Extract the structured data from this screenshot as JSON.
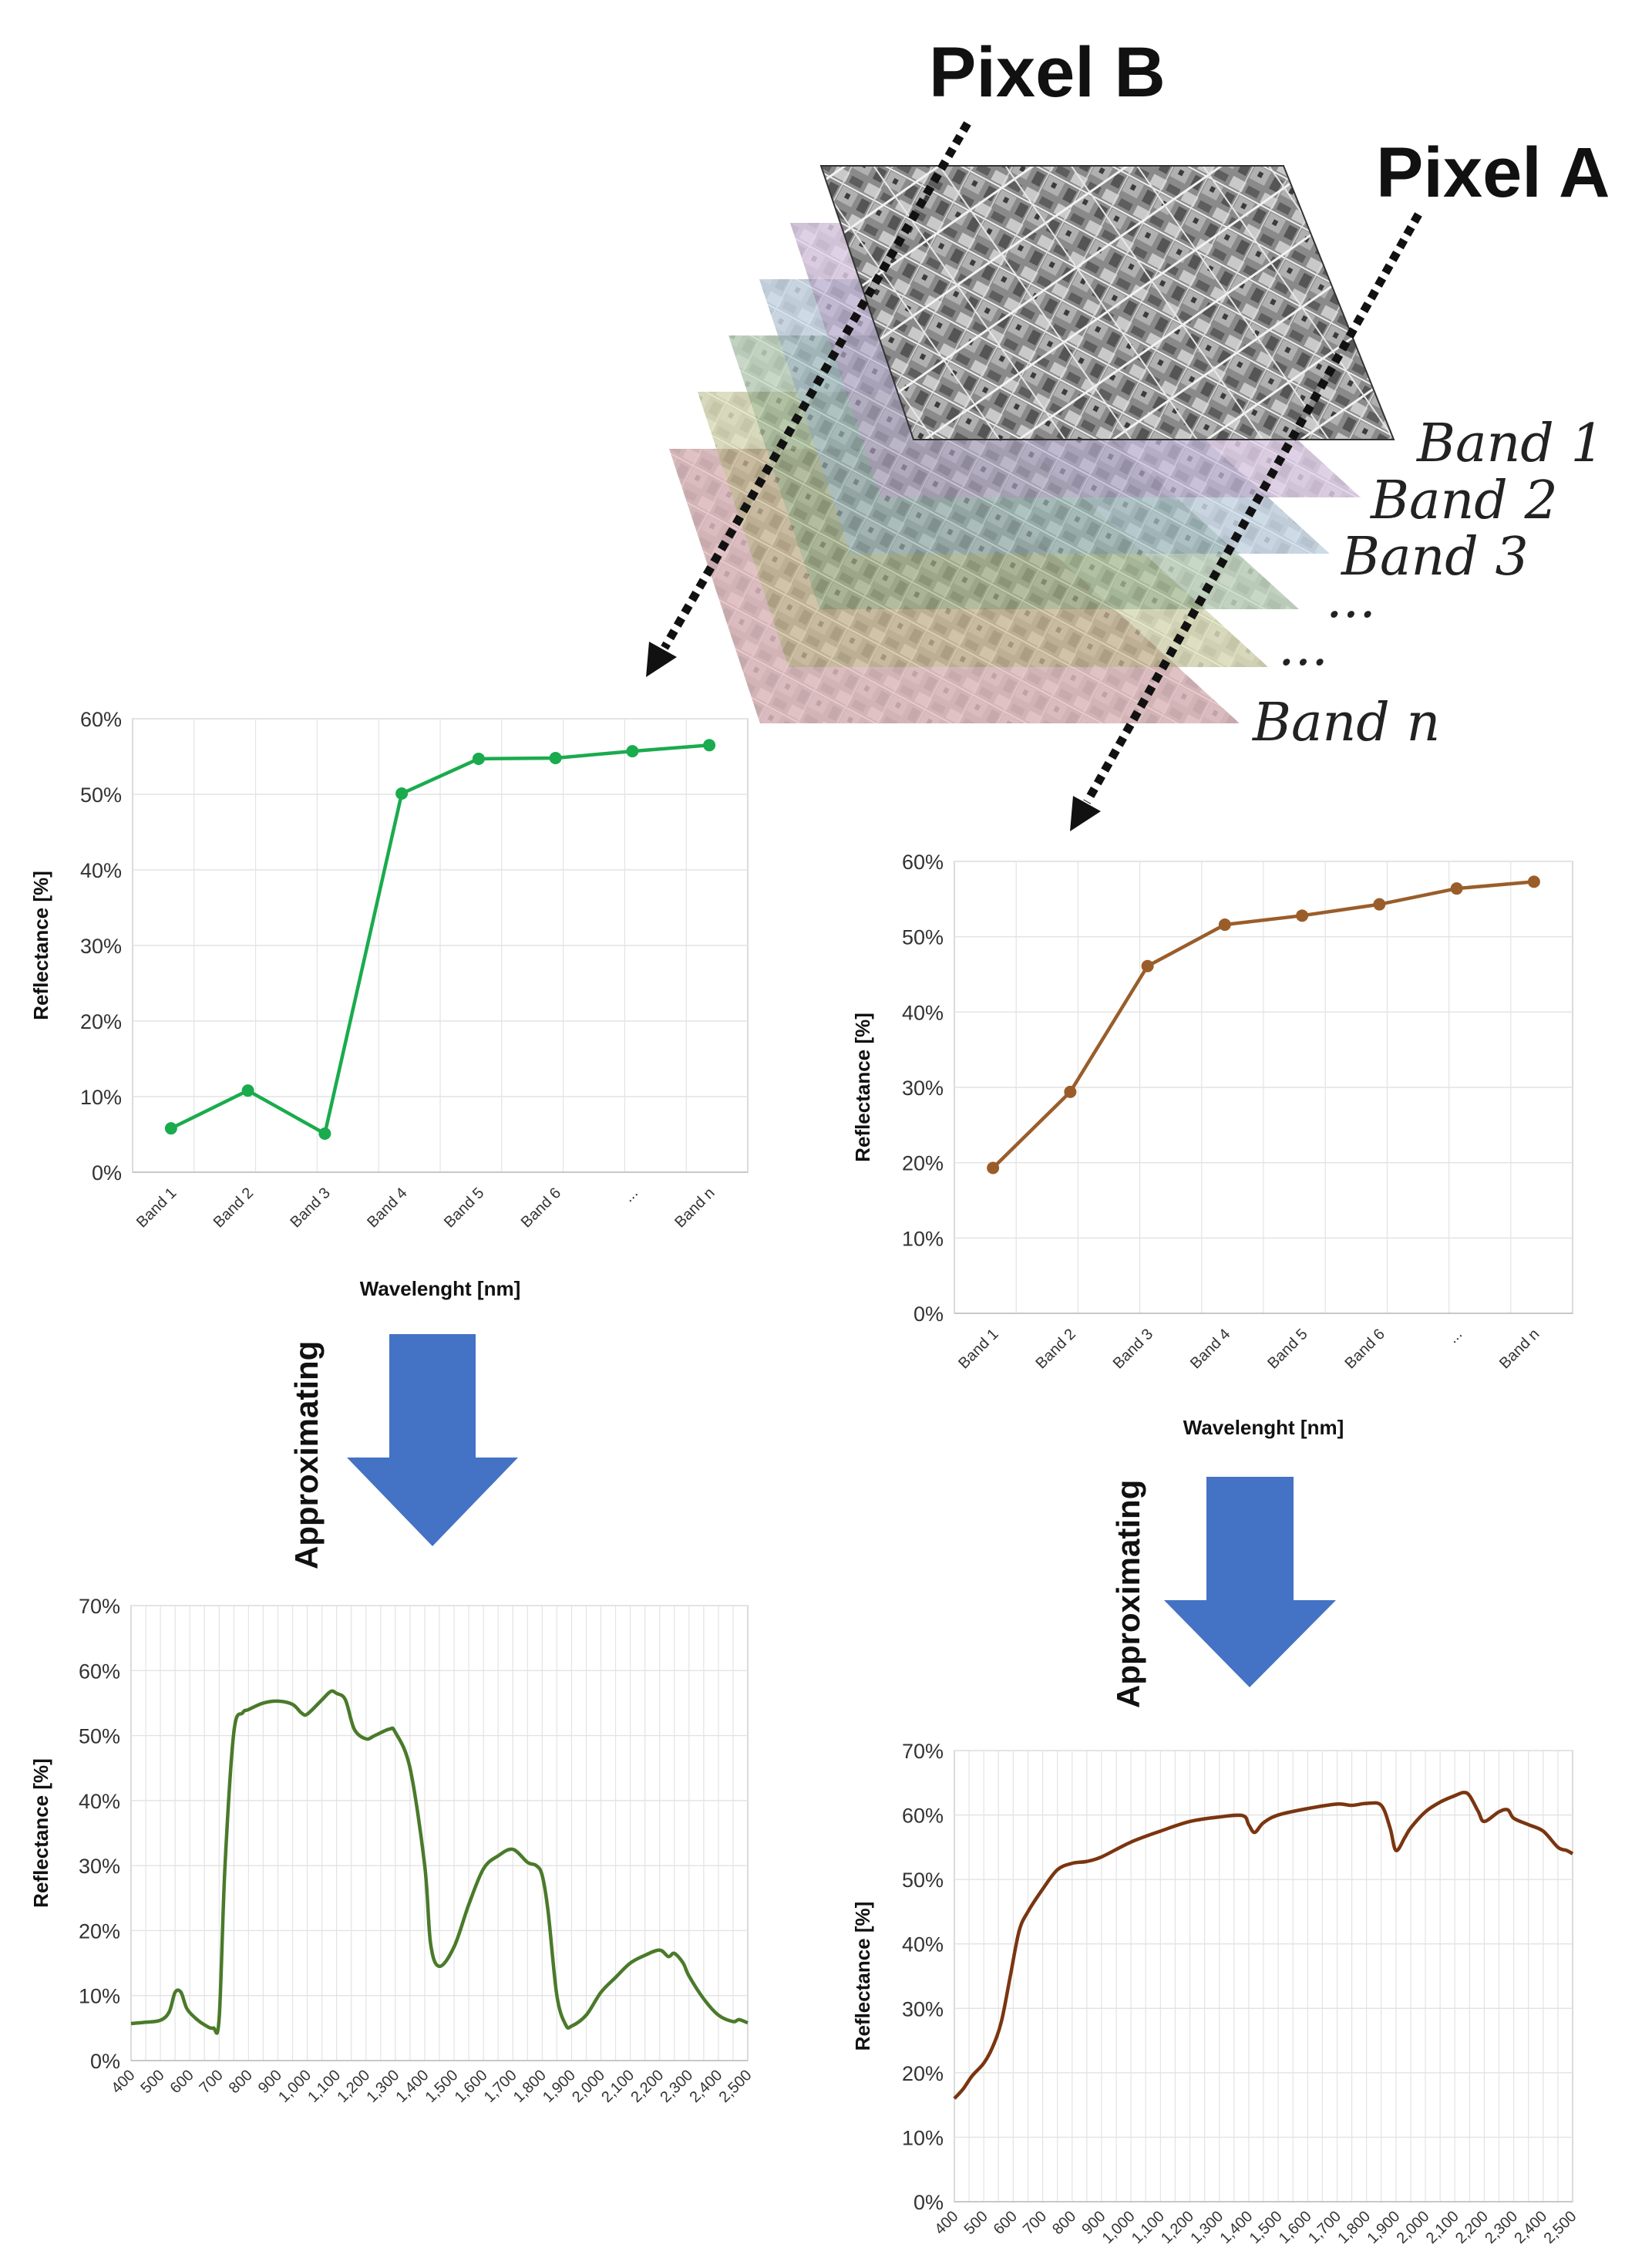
{
  "labels": {
    "pixel_b": "Pixel B",
    "pixel_a": "Pixel A",
    "bands": [
      "Band 1",
      "Band 2",
      "Band 3",
      "...",
      "...",
      "Band n"
    ],
    "approximating": "Approximating"
  },
  "colors": {
    "pixel_b_line": "#1aab4e",
    "pixel_a_line": "#9a5d2a",
    "pixel_b_spectrum": "#4a7a2a",
    "pixel_a_spectrum": "#7a3510",
    "arrow_fill": "#4472c4",
    "grid": "#e3e3e3"
  },
  "chart_data": [
    {
      "id": "pixel-b-bands",
      "type": "line",
      "categories": [
        "Band 1",
        "Band 2",
        "Band 3",
        "Band 4",
        "Band 5",
        "Band 6",
        "...",
        "Band n"
      ],
      "values": [
        5.8,
        10.8,
        5.1,
        50.1,
        54.7,
        54.8,
        55.7,
        56.5
      ],
      "xlabel": "Wavelenght [nm]",
      "ylabel": "Reflectance [%]",
      "ylim": [
        0,
        60
      ],
      "yticks": [
        "0%",
        "10%",
        "20%",
        "30%",
        "40%",
        "50%",
        "60%"
      ],
      "grid": true
    },
    {
      "id": "pixel-a-bands",
      "type": "line",
      "categories": [
        "Band 1",
        "Band 2",
        "Band 3",
        "Band 4",
        "Band 5",
        "Band 6",
        "...",
        "Band n"
      ],
      "values": [
        19.3,
        29.4,
        46.1,
        51.6,
        52.8,
        54.3,
        56.4,
        57.3
      ],
      "xlabel": "Wavelenght [nm]",
      "ylabel": "Reflectance [%]",
      "ylim": [
        0,
        60
      ],
      "yticks": [
        "0%",
        "10%",
        "20%",
        "30%",
        "40%",
        "50%",
        "60%"
      ],
      "grid": true
    },
    {
      "id": "pixel-b-spectrum",
      "type": "line",
      "xlabel": "",
      "ylabel": "Reflectance [%]",
      "xlim": [
        400,
        2500
      ],
      "ylim": [
        0,
        70
      ],
      "xticks": [
        "400",
        "500",
        "600",
        "700",
        "800",
        "900",
        "1,000",
        "1,100",
        "1,200",
        "1,300",
        "1,400",
        "1,500",
        "1,600",
        "1,700",
        "1,800",
        "1,900",
        "2,000",
        "2,100",
        "2,200",
        "2,300",
        "2,400",
        "2,500"
      ],
      "yticks": [
        "0%",
        "10%",
        "20%",
        "30%",
        "40%",
        "50%",
        "60%",
        "70%"
      ],
      "grid": true,
      "x": [
        400,
        450,
        500,
        530,
        550,
        570,
        590,
        620,
        650,
        680,
        700,
        720,
        750,
        780,
        800,
        850,
        900,
        950,
        980,
        1000,
        1050,
        1080,
        1100,
        1130,
        1160,
        1200,
        1230,
        1280,
        1300,
        1350,
        1400,
        1420,
        1450,
        1500,
        1550,
        1600,
        1650,
        1700,
        1750,
        1780,
        1800,
        1820,
        1850,
        1880,
        1900,
        1950,
        2000,
        2050,
        2100,
        2150,
        2200,
        2230,
        2250,
        2280,
        2300,
        2350,
        2400,
        2450,
        2470,
        2500
      ],
      "y": [
        5.7,
        5.9,
        6.2,
        7.5,
        10.5,
        10.5,
        8.0,
        6.5,
        5.5,
        5.0,
        6.5,
        30.0,
        50.5,
        53.5,
        54.0,
        55.0,
        55.3,
        54.8,
        53.5,
        53.3,
        55.5,
        56.8,
        56.5,
        55.5,
        51.0,
        49.5,
        50.0,
        51.0,
        50.5,
        45.0,
        30.0,
        18.0,
        14.5,
        17.5,
        24.0,
        29.5,
        31.5,
        32.5,
        30.5,
        30.0,
        28.5,
        23.0,
        10.0,
        5.5,
        5.3,
        7.0,
        10.5,
        12.8,
        15.0,
        16.2,
        17.0,
        16.0,
        16.5,
        15.0,
        13.0,
        9.5,
        7.0,
        6.0,
        6.3,
        5.8
      ]
    },
    {
      "id": "pixel-a-spectrum",
      "type": "line",
      "xlabel": "",
      "ylabel": "Reflectance [%]",
      "xlim": [
        400,
        2500
      ],
      "ylim": [
        0,
        70
      ],
      "xticks": [
        "400",
        "500",
        "600",
        "700",
        "800",
        "900",
        "1,000",
        "1,100",
        "1,200",
        "1,300",
        "1,400",
        "1,500",
        "1,600",
        "1,700",
        "1,800",
        "1,900",
        "2,000",
        "2,100",
        "2,200",
        "2,300",
        "2,400",
        "2,500"
      ],
      "yticks": [
        "0%",
        "10%",
        "20%",
        "30%",
        "40%",
        "50%",
        "60%",
        "70%"
      ],
      "grid": true,
      "x": [
        400,
        430,
        460,
        500,
        530,
        560,
        590,
        620,
        650,
        700,
        750,
        800,
        850,
        900,
        1000,
        1100,
        1200,
        1300,
        1380,
        1400,
        1420,
        1450,
        1500,
        1600,
        1700,
        1750,
        1800,
        1850,
        1880,
        1900,
        1930,
        1950,
        2000,
        2050,
        2100,
        2130,
        2150,
        2180,
        2200,
        2250,
        2280,
        2300,
        2350,
        2400,
        2450,
        2480,
        2500
      ],
      "y": [
        16.0,
        17.5,
        19.5,
        21.5,
        24.0,
        28.0,
        35.0,
        42.0,
        45.0,
        48.5,
        51.5,
        52.5,
        52.8,
        53.5,
        55.8,
        57.5,
        59.0,
        59.7,
        59.9,
        58.5,
        57.3,
        58.8,
        60.0,
        61.0,
        61.7,
        61.5,
        61.8,
        61.5,
        58.0,
        54.5,
        56.5,
        58.0,
        60.5,
        62.0,
        63.0,
        63.5,
        63.0,
        60.5,
        59.0,
        60.5,
        60.8,
        59.5,
        58.5,
        57.5,
        55.0,
        54.5,
        54.0
      ]
    }
  ]
}
